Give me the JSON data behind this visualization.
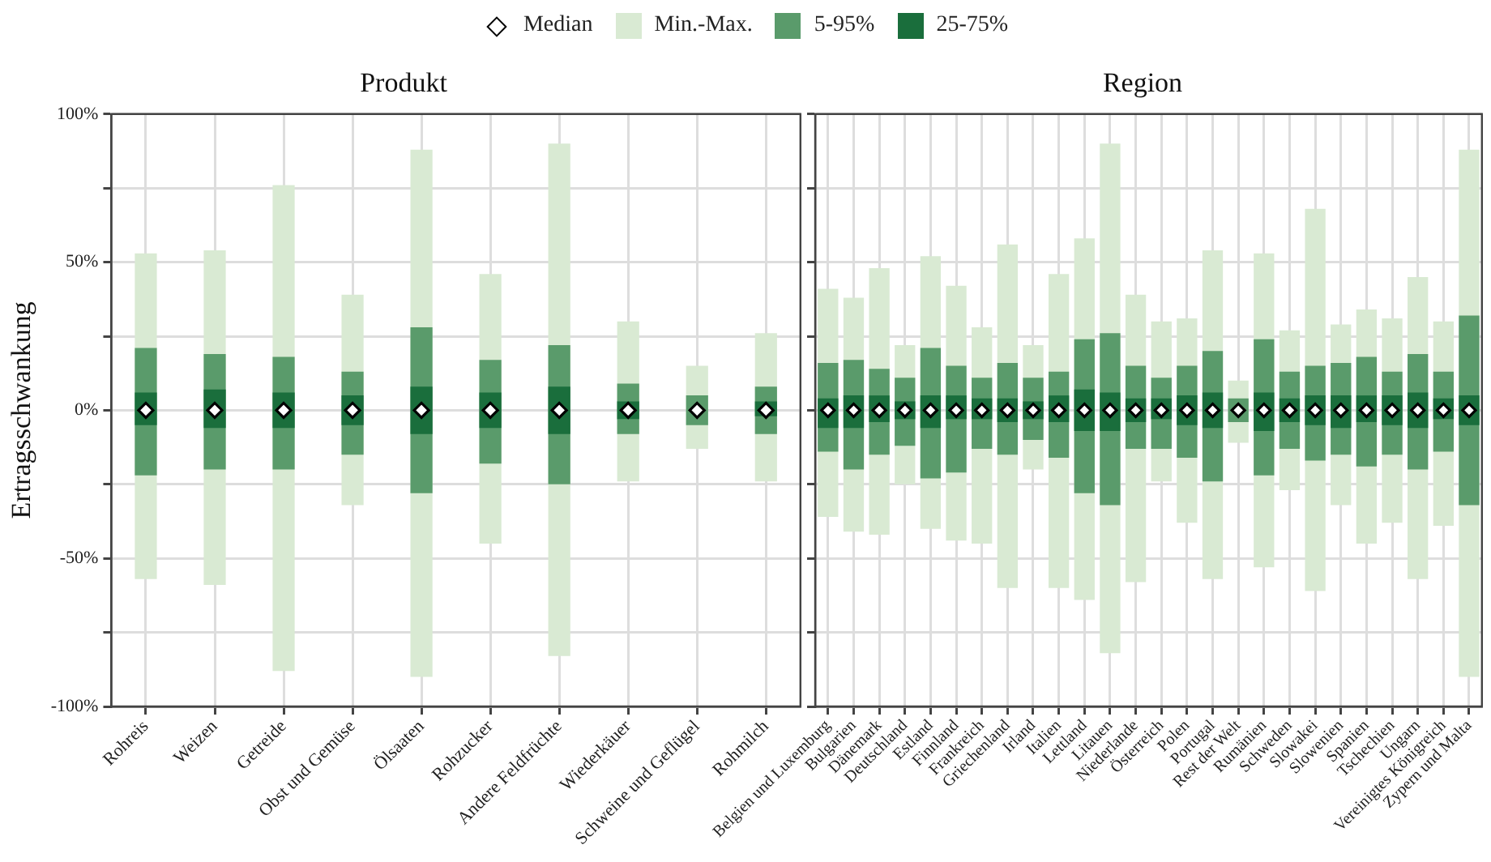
{
  "chart_data": [
    {
      "type": "bar",
      "title": "Produkt",
      "ylabel": "Ertragsschwankung",
      "legend": "top",
      "grid": true,
      "categories": [
        "Rohreis",
        "Weizen",
        "Getreide",
        "Obst und Gemüse",
        "Ölsaaten",
        "Rohzucker",
        "Andere Feldfrüchte",
        "Wiederkäuer",
        "Schweine und Geflügel",
        "Rohmilch"
      ],
      "ylim": [
        -100,
        100
      ],
      "yticks": [
        {
          "value": -100,
          "label": "-100%"
        },
        {
          "value": -75,
          "label": null
        },
        {
          "value": -50,
          "label": "-50%"
        },
        {
          "value": -25,
          "label": null
        },
        {
          "value": 0,
          "label": "0%"
        },
        {
          "value": 25,
          "label": null
        },
        {
          "value": 50,
          "label": "50%"
        },
        {
          "value": 75,
          "label": null
        },
        {
          "value": 100,
          "label": "100%"
        }
      ],
      "series": [
        {
          "name": "Median",
          "type": "scatter",
          "marker": "diamond",
          "color": "#ffffff",
          "values": [
            0,
            0,
            0,
            0,
            0,
            0,
            0,
            0,
            0,
            0
          ]
        },
        {
          "name": "Min.-Max.",
          "color": "#d9ead3",
          "values": [
            110,
            113,
            164,
            71,
            178,
            91,
            173,
            54,
            28,
            50
          ],
          "base": [
            -57,
            -59,
            -88,
            -32,
            -90,
            -45,
            -83,
            -24,
            -13,
            -24
          ]
        },
        {
          "name": "5-95%",
          "color": "#5a9b6b",
          "values": [
            43,
            39,
            38,
            28,
            56,
            35,
            47,
            17,
            10,
            16
          ],
          "base": [
            -22,
            -20,
            -20,
            -15,
            -28,
            -18,
            -25,
            -8,
            -5,
            -8
          ]
        },
        {
          "name": "25-75%",
          "color": "#1a6e3c",
          "values": [
            11,
            13,
            12,
            10,
            16,
            12,
            16,
            6,
            null,
            5
          ],
          "base": [
            -5,
            -6,
            -6,
            -5,
            -8,
            -6,
            -8,
            -3,
            null,
            -2
          ]
        }
      ]
    },
    {
      "type": "bar",
      "title": "Region",
      "grid": true,
      "tick_labels": "x",
      "categories": [
        "Belgien und Luxemburg",
        "Bulgarien",
        "Dänemark",
        "Deutschland",
        "Estland",
        "Finnland",
        "Frankreich",
        "Griechenland",
        "Irland",
        "Italien",
        "Lettland",
        "Litauen",
        "Niederlande",
        "Österreich",
        "Polen",
        "Portugal",
        "Rest der Welt",
        "Rumänien",
        "Schweden",
        "Slowakei",
        "Slowenien",
        "Spanien",
        "Tschechien",
        "Ungarn",
        "Vereinigtes Königreich",
        "Zypern und Malta"
      ],
      "ylim": [
        -100,
        100
      ],
      "yticks": [
        {
          "value": -100,
          "label": null
        },
        {
          "value": -75,
          "label": null
        },
        {
          "value": -50,
          "label": null
        },
        {
          "value": -25,
          "label": null
        },
        {
          "value": 0,
          "label": null
        },
        {
          "value": 25,
          "label": null
        },
        {
          "value": 50,
          "label": null
        },
        {
          "value": 75,
          "label": null
        },
        {
          "value": 100,
          "label": null
        }
      ],
      "series": [
        {
          "type": "scatter",
          "marker": "diamond",
          "color": "#ffffff",
          "values": [
            0,
            0,
            0,
            0,
            0,
            0,
            0,
            0,
            0,
            0,
            0,
            0,
            0,
            0,
            0,
            0,
            0,
            0,
            0,
            0,
            0,
            0,
            0,
            0,
            0,
            0
          ]
        },
        {
          "color": "#d9ead3",
          "values": [
            77,
            79,
            90,
            47,
            92,
            86,
            73,
            116,
            42,
            106,
            122,
            172,
            97,
            54,
            69,
            111,
            21,
            106,
            54,
            129,
            61,
            79,
            69,
            102,
            69,
            178
          ],
          "base": [
            -36,
            -41,
            -42,
            -25,
            -40,
            -44,
            -45,
            -60,
            -20,
            -60,
            -64,
            -82,
            -58,
            -24,
            -38,
            -57,
            -11,
            -53,
            -27,
            -61,
            -32,
            -45,
            -38,
            -57,
            -39,
            -90
          ]
        },
        {
          "color": "#5a9b6b",
          "values": [
            30,
            37,
            29,
            23,
            44,
            36,
            24,
            31,
            21,
            29,
            52,
            58,
            28,
            24,
            31,
            44,
            8,
            46,
            26,
            32,
            31,
            37,
            28,
            39,
            27,
            64
          ],
          "base": [
            -14,
            -20,
            -15,
            -12,
            -23,
            -21,
            -13,
            -15,
            -10,
            -16,
            -28,
            -32,
            -13,
            -13,
            -16,
            -24,
            -4,
            -22,
            -13,
            -17,
            -15,
            -19,
            -15,
            -20,
            -14,
            -32
          ]
        },
        {
          "color": "#1a6e3c",
          "values": [
            10,
            11,
            9,
            6,
            11,
            8,
            7,
            8,
            6,
            9,
            14,
            13,
            8,
            7,
            10,
            12,
            null,
            13,
            8,
            10,
            11,
            9,
            10,
            12,
            7,
            10
          ],
          "base": [
            -6,
            -6,
            -4,
            -3,
            -6,
            -3,
            -3,
            -4,
            -3,
            -4,
            -7,
            -7,
            -4,
            -3,
            -5,
            -6,
            null,
            -7,
            -4,
            -5,
            -6,
            -4,
            -5,
            -6,
            -3,
            -5
          ]
        }
      ]
    }
  ]
}
